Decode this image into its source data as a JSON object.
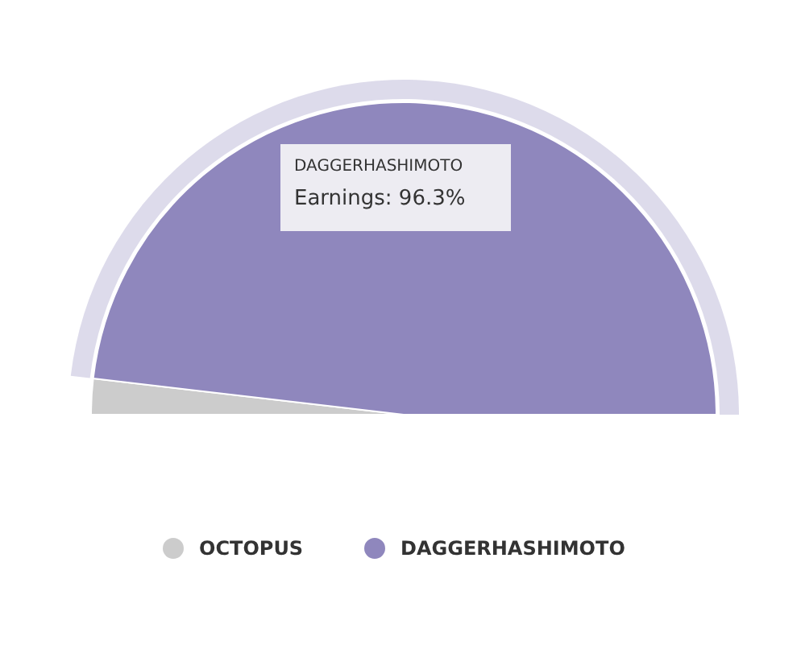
{
  "chart_data": {
    "type": "pie",
    "categories": [
      "OCTOPUS",
      "DAGGERHASHIMOTO"
    ],
    "values": [
      3.7,
      96.3
    ],
    "colors": [
      "#cccccc",
      "#8f87bd"
    ],
    "legend": "bottom",
    "annotations": [
      "DAGGERHASHIMOTO",
      "Earnings: 96.3%"
    ]
  }
}
